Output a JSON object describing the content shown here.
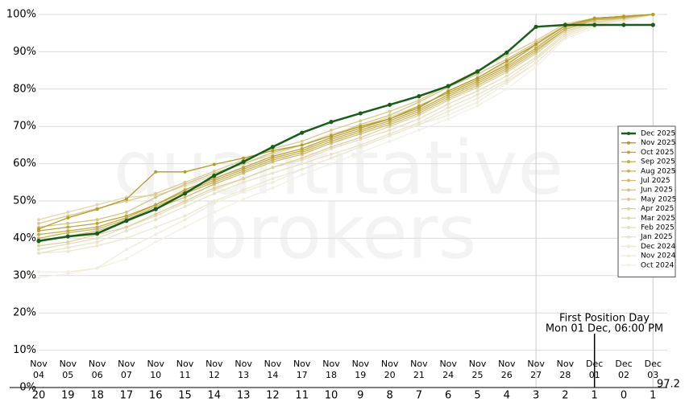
{
  "chart_data": {
    "type": "line",
    "watermark": [
      "quantitative",
      "brokers"
    ],
    "categories": [
      "Nov 04",
      "Nov 05",
      "Nov 06",
      "Nov 07",
      "Nov 10",
      "Nov 11",
      "Nov 12",
      "Nov 13",
      "Nov 14",
      "Nov 17",
      "Nov 18",
      "Nov 19",
      "Nov 20",
      "Nov 21",
      "Nov 24",
      "Nov 25",
      "Nov 26",
      "Nov 27",
      "Nov 28",
      "Dec 01",
      "Dec 02",
      "Dec 03"
    ],
    "countdown": [
      20,
      19,
      18,
      17,
      16,
      15,
      14,
      13,
      12,
      11,
      10,
      9,
      8,
      7,
      6,
      5,
      4,
      3,
      2,
      1,
      0,
      1
    ],
    "ylim": [
      0,
      100
    ],
    "yticks": [
      {
        "value": 0,
        "label": "0%"
      },
      {
        "value": 10,
        "label": "10%"
      },
      {
        "value": 20,
        "label": "20%"
      },
      {
        "value": 30,
        "label": "30%"
      },
      {
        "value": 40,
        "label": "40%"
      },
      {
        "value": 50,
        "label": "50%"
      },
      {
        "value": 60,
        "label": "60%"
      },
      {
        "value": 70,
        "label": "70%"
      },
      {
        "value": 80,
        "label": "80%"
      },
      {
        "value": 90,
        "label": "90%"
      },
      {
        "value": 100,
        "label": "100%"
      }
    ],
    "grid": true,
    "legend": "right",
    "annotation": [
      "First Position Day",
      "Mon 01 Dec, 06:00 PM"
    ],
    "series": [
      {
        "name": "Dec 2025",
        "color": "#1a5c1a",
        "values": [
          39.3,
          40.5,
          41.3,
          44.7,
          47.8,
          52,
          56.8,
          60.5,
          64.5,
          68.3,
          71.2,
          73.5,
          75.8,
          78.1,
          80.8,
          84.7,
          89.8,
          96.7,
          97.2,
          97.2,
          97.2,
          97.2
        ]
      },
      {
        "name": "Nov 2025",
        "color": "#b39b2a",
        "values": [
          42.5,
          45.5,
          47.8,
          50.5,
          57.8,
          57.8,
          59.8,
          61.5,
          63.5,
          65,
          67.5,
          70,
          72,
          75,
          79.5,
          83,
          87.5,
          92,
          97,
          99,
          99.5,
          100
        ]
      },
      {
        "name": "Oct 2025",
        "color": "#bca43a",
        "values": [
          42,
          43,
          44,
          46,
          49,
          53,
          56,
          59,
          62,
          64,
          67,
          69.5,
          72,
          75.5,
          79,
          82.5,
          86.5,
          92,
          97,
          99,
          99.5,
          100
        ]
      },
      {
        "name": "Sep 2025",
        "color": "#c2ac4e",
        "values": [
          41,
          42,
          43,
          45.5,
          49,
          52.5,
          55.5,
          58.5,
          61.5,
          63.5,
          66.5,
          69,
          71.5,
          74.5,
          78.5,
          82,
          86,
          91,
          96.5,
          98.8,
          99.3,
          100
        ]
      },
      {
        "name": "Aug 2025",
        "color": "#c8b460",
        "values": [
          40,
          41.5,
          42.5,
          45,
          48.5,
          52,
          55,
          58,
          61,
          63,
          66,
          68.5,
          71,
          74,
          78,
          81.5,
          85.5,
          90.5,
          96,
          98.5,
          99.2,
          100
        ]
      },
      {
        "name": "Jul 2025",
        "color": "#cfbd74",
        "values": [
          39,
          40.5,
          42,
          44.5,
          48,
          51,
          54.5,
          57.5,
          60.5,
          62.5,
          65.5,
          68,
          70.5,
          73.5,
          77.5,
          81,
          85,
          90,
          96,
          98.5,
          99,
          100
        ]
      },
      {
        "name": "Jun 2025",
        "color": "#d4c486",
        "values": [
          43,
          44,
          45,
          47,
          51,
          54.5,
          57.5,
          60,
          63,
          65,
          67.5,
          70.5,
          73,
          76.5,
          80.5,
          84,
          88,
          92.5,
          97,
          99,
          99.5,
          100
        ]
      },
      {
        "name": "May 2025",
        "color": "#d9cb94",
        "values": [
          44,
          46,
          48,
          50,
          52,
          55,
          58,
          61,
          64,
          66,
          69,
          71.5,
          74,
          77,
          81,
          85,
          89,
          93,
          97.5,
          99,
          99.5,
          100
        ]
      },
      {
        "name": "Apr 2025",
        "color": "#ddd1a2",
        "values": [
          38,
          39,
          41,
          43,
          46.5,
          50,
          53.5,
          56,
          59,
          61.5,
          64.5,
          67,
          70,
          73,
          77,
          80.5,
          84.5,
          89.5,
          95.5,
          98,
          99,
          100
        ]
      },
      {
        "name": "Mar 2025",
        "color": "#e2d8b0",
        "values": [
          45,
          47,
          49,
          51,
          51.5,
          54,
          57,
          60,
          62.5,
          65,
          68,
          70,
          72.5,
          75.5,
          79,
          82.5,
          87,
          91.5,
          96.5,
          98.5,
          99.2,
          100
        ]
      },
      {
        "name": "Feb 2025",
        "color": "#e6debd",
        "values": [
          37,
          38.5,
          40,
          43,
          46,
          49.5,
          53,
          56,
          59,
          61,
          64,
          66.5,
          69,
          72,
          76,
          79.5,
          83.5,
          88.5,
          95,
          97.8,
          98.8,
          100
        ]
      },
      {
        "name": "Jan 2025",
        "color": "#eae3c8",
        "values": [
          36,
          37.5,
          39,
          42,
          45,
          48.5,
          52,
          55,
          57.5,
          60,
          62.5,
          65,
          68,
          71,
          75,
          78.5,
          82.5,
          88,
          94.5,
          97.5,
          98.5,
          100
        ]
      },
      {
        "name": "Dec 2024",
        "color": "#eee8d2",
        "values": [
          36,
          36.5,
          38,
          40,
          43,
          46,
          50,
          53,
          56,
          58.5,
          61.5,
          64.5,
          67.5,
          70.5,
          74,
          77.5,
          82,
          87,
          94,
          97,
          98.5,
          100
        ]
      },
      {
        "name": "Nov 2024",
        "color": "#f1ecdb",
        "values": [
          31,
          31,
          32,
          37,
          41,
          45,
          49.5,
          52.5,
          55,
          58.5,
          61.5,
          64.5,
          67.5,
          70.5,
          73,
          76.5,
          81.5,
          87,
          94,
          97,
          98.5,
          100
        ]
      },
      {
        "name": "Oct 2024",
        "color": "#f4f0e4",
        "values": [
          29.5,
          30.5,
          32,
          34.5,
          39,
          43,
          47,
          50.5,
          53.5,
          57,
          60,
          63,
          66,
          69,
          72,
          75.5,
          80,
          86,
          93.5,
          96.5,
          98,
          100
        ]
      }
    ]
  }
}
